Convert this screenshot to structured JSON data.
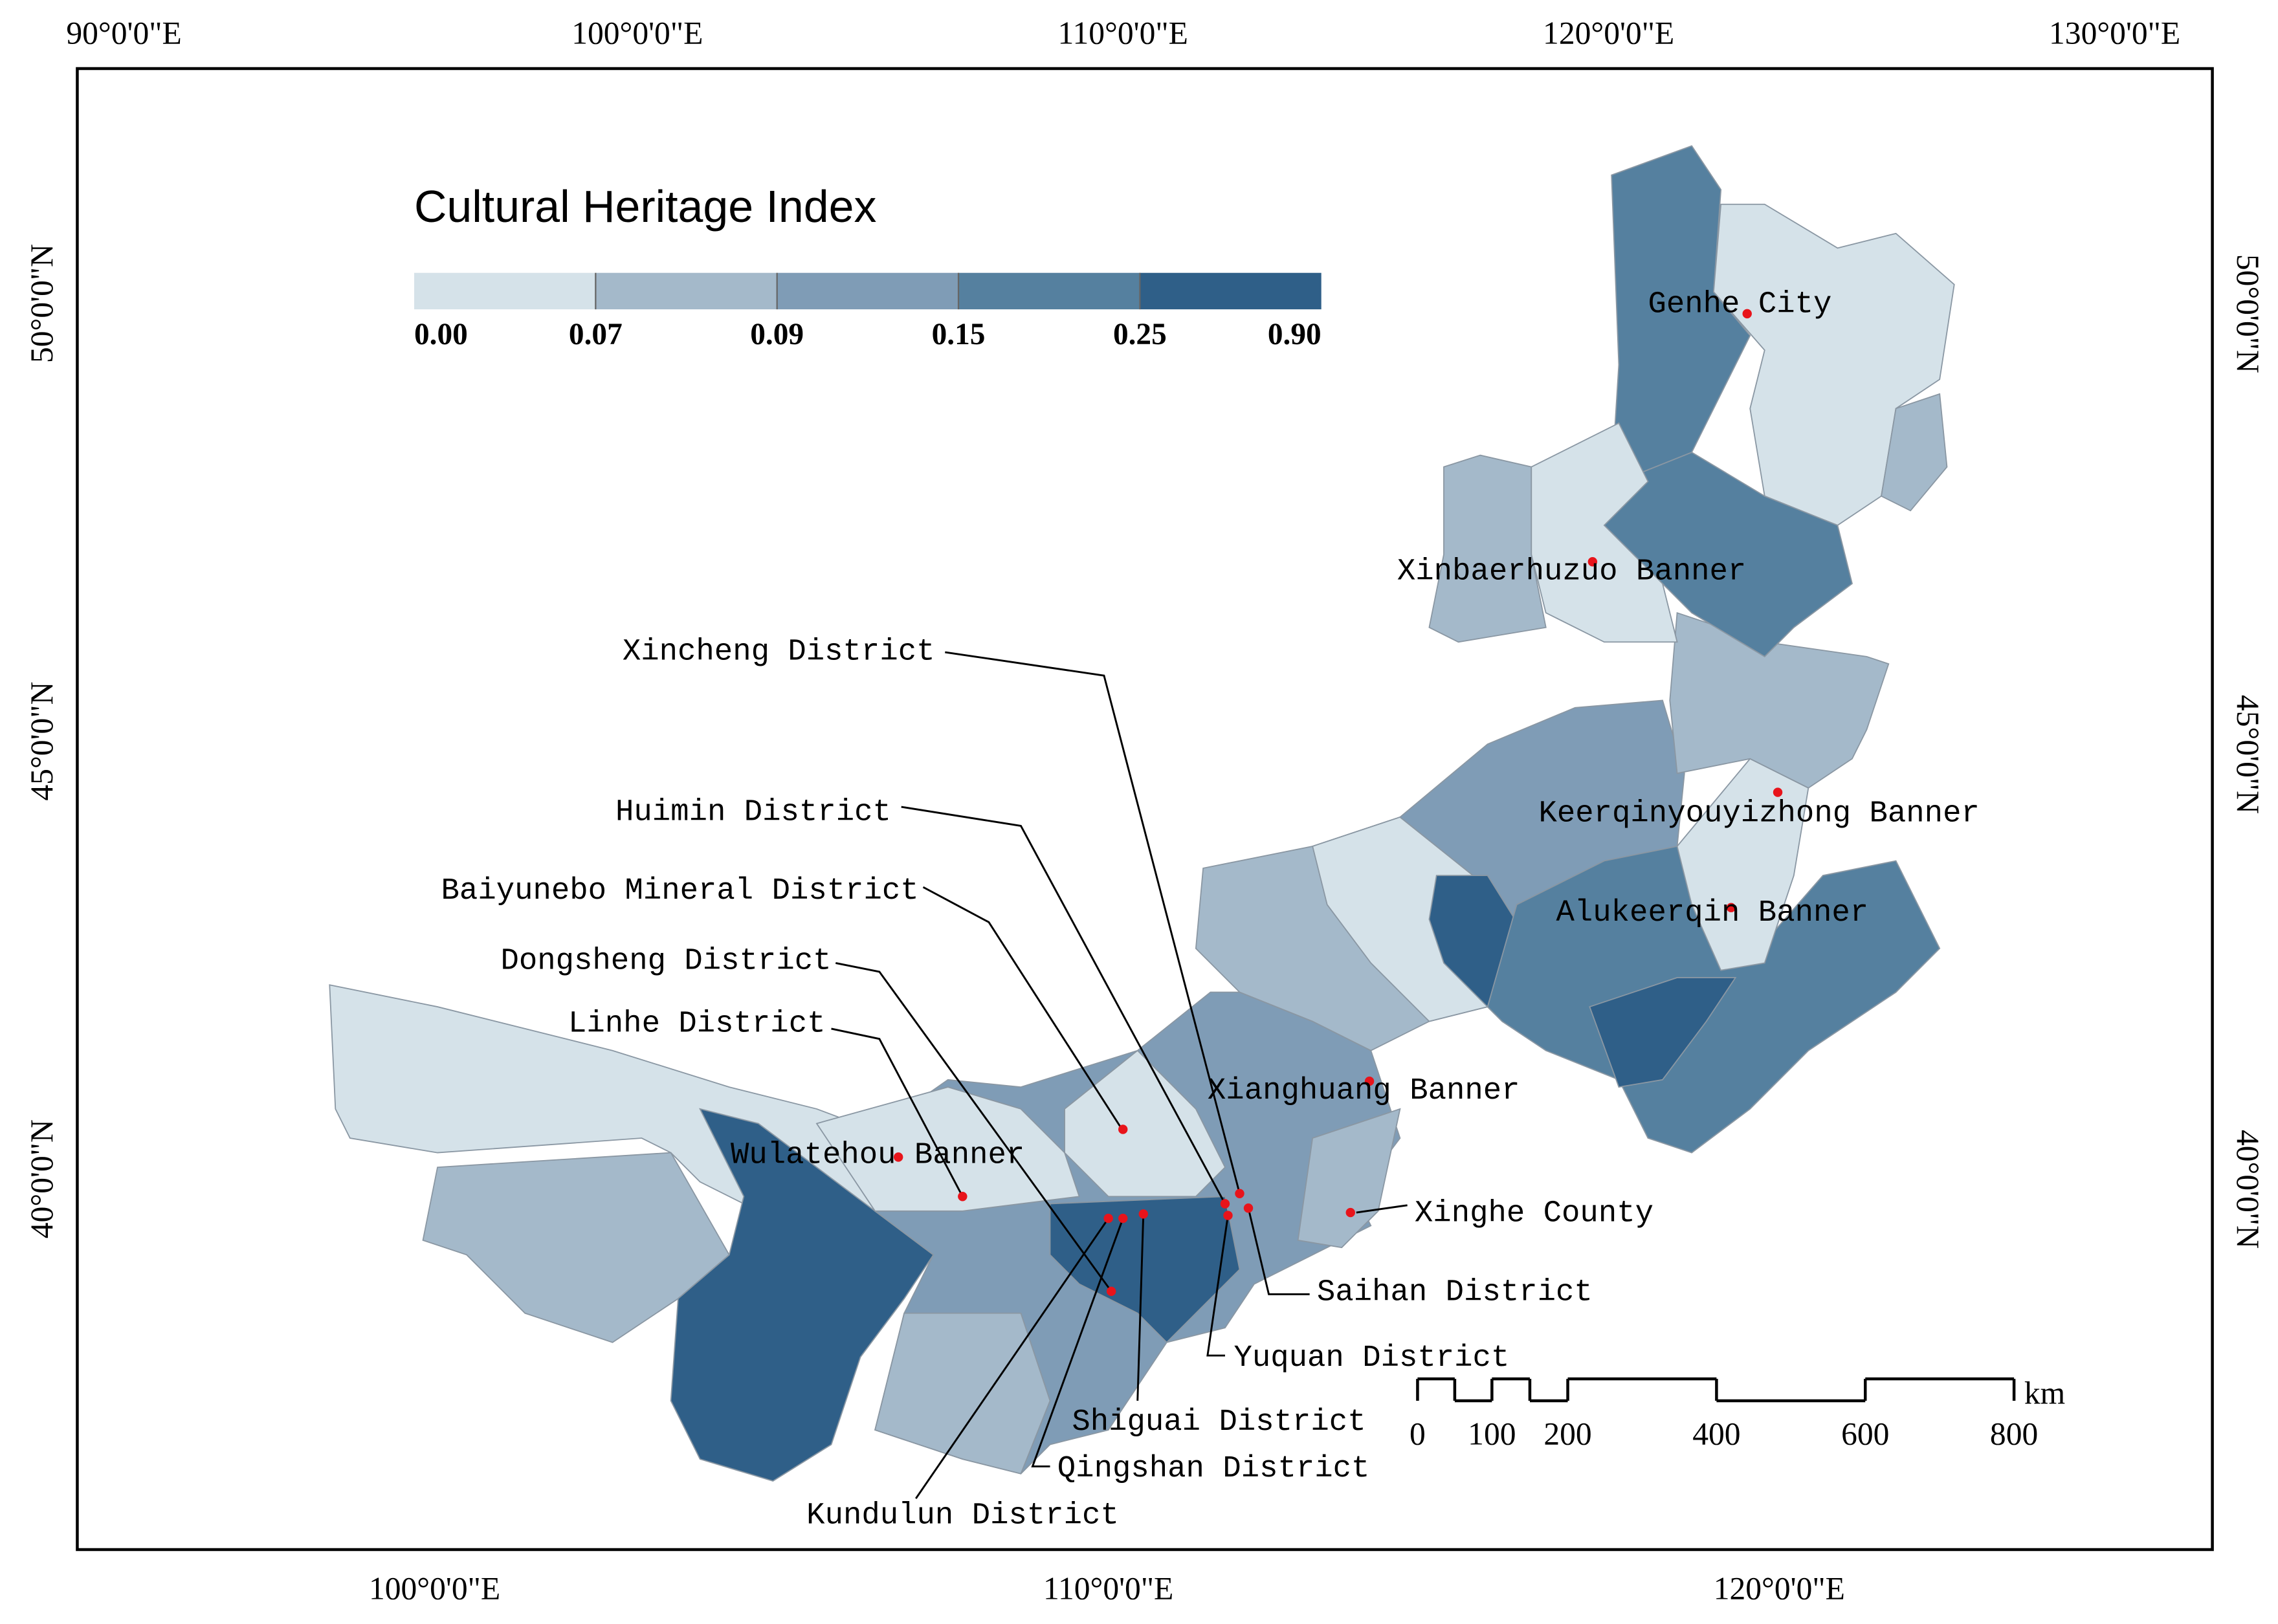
{
  "legend": {
    "title": "Cultural Heritage Index",
    "breaks": [
      "0.00",
      "0.07",
      "0.09",
      "0.15",
      "0.25",
      "0.90"
    ],
    "colors": [
      "#d5e2e9",
      "#a4b9ca",
      "#7f9cb6",
      "#55809f",
      "#2f5f88"
    ]
  },
  "graticule": {
    "top": [
      "90°0'0\"E",
      "100°0'0\"E",
      "110°0'0\"E",
      "120°0'0\"E",
      "130°0'0\"E"
    ],
    "bottom": [
      "100°0'0\"E",
      "110°0'0\"E",
      "120°0'0\"E"
    ],
    "left": [
      "50°0'0\"N",
      "45°0'0\"N",
      "40°0'0\"N"
    ],
    "right": [
      "50°0'0\"N",
      "45°0'0\"N",
      "40°0'0\"N"
    ]
  },
  "places": [
    "Genhe City",
    "Xinbaerhuzuo Banner",
    "Keerqinyouyizhong Banner",
    "Alukeerqin Banner",
    "Xianghuang Banner",
    "Wulatehou Banner",
    "Xinghe County",
    "Xincheng District",
    "Huimin District",
    "Baiyunebo Mineral District",
    "Dongsheng District",
    "Linhe District",
    "Saihan District",
    "Yuquan District",
    "Shiguai District",
    "Qingshan District",
    "Kundulun District"
  ],
  "scale_bar": {
    "labels": [
      "0",
      "100",
      "200",
      "400",
      "600",
      "800"
    ],
    "unit": "km"
  }
}
